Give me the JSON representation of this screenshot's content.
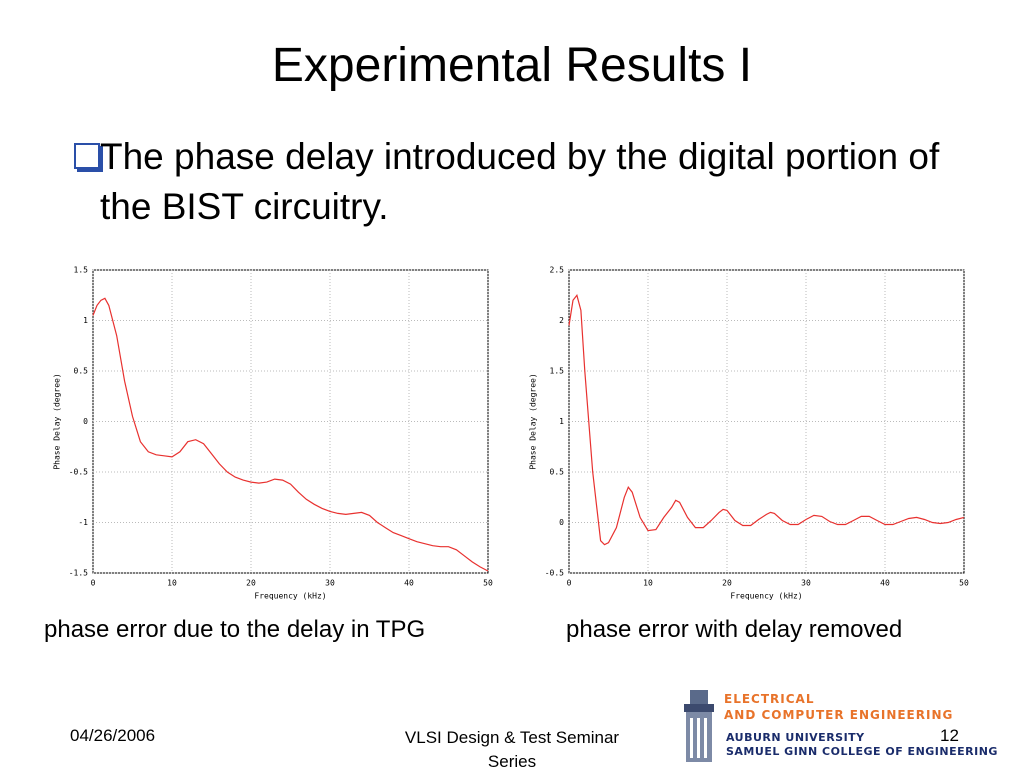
{
  "slide": {
    "title": "Experimental Results I",
    "bullet": "The phase delay introduced by the digital portion of the BIST circuitry.",
    "captions": [
      "phase error due to the delay in TPG",
      "phase error with delay removed"
    ],
    "footer": {
      "date": "04/26/2006",
      "center": "VLSI Design & Test Seminar Series",
      "page": "12"
    },
    "logo": [
      "ELECTRICAL",
      "AND COMPUTER ENGINEERING",
      "AUBURN UNIVERSITY",
      "SAMUEL GINN COLLEGE OF ENGINEERING"
    ]
  },
  "chart_data": [
    {
      "type": "line",
      "xlabel": "Frequency (kHz)",
      "ylabel": "Phase Delay (degree)",
      "color": "#e8312f",
      "grid": true,
      "xlim": [
        0,
        50
      ],
      "xticks": [
        0,
        10,
        20,
        30,
        40,
        50
      ],
      "ylim": [
        -1.5,
        1.5
      ],
      "yticks": [
        -1.5,
        -1,
        -0.5,
        0,
        0.5,
        1,
        1.5
      ],
      "x": [
        0,
        0.5,
        1,
        1.5,
        2,
        3,
        4,
        5,
        6,
        7,
        8,
        9,
        10,
        11,
        12,
        13,
        14,
        15,
        16,
        17,
        18,
        19,
        20,
        21,
        22,
        23,
        24,
        25,
        26,
        27,
        28,
        29,
        30,
        31,
        32,
        33,
        34,
        35,
        36,
        37,
        38,
        39,
        40,
        41,
        42,
        43,
        44,
        45,
        46,
        47,
        48,
        49,
        50
      ],
      "y": [
        1.05,
        1.15,
        1.2,
        1.22,
        1.15,
        0.85,
        0.4,
        0.05,
        -0.2,
        -0.3,
        -0.33,
        -0.34,
        -0.35,
        -0.3,
        -0.2,
        -0.18,
        -0.22,
        -0.32,
        -0.42,
        -0.5,
        -0.55,
        -0.58,
        -0.6,
        -0.61,
        -0.6,
        -0.57,
        -0.58,
        -0.62,
        -0.7,
        -0.77,
        -0.82,
        -0.86,
        -0.89,
        -0.91,
        -0.92,
        -0.91,
        -0.9,
        -0.93,
        -1.0,
        -1.05,
        -1.1,
        -1.13,
        -1.16,
        -1.19,
        -1.21,
        -1.23,
        -1.24,
        -1.24,
        -1.27,
        -1.33,
        -1.39,
        -1.44,
        -1.48
      ]
    },
    {
      "type": "line",
      "xlabel": "Frequency (kHz)",
      "ylabel": "Phase Delay (degree)",
      "color": "#e8312f",
      "grid": true,
      "xlim": [
        0,
        50
      ],
      "xticks": [
        0,
        10,
        20,
        30,
        40,
        50
      ],
      "ylim": [
        -0.5,
        2.5
      ],
      "yticks": [
        -0.5,
        0,
        0.5,
        1,
        1.5,
        2,
        2.5
      ],
      "x": [
        0,
        0.5,
        1,
        1.5,
        2,
        3,
        4,
        4.5,
        5,
        6,
        7,
        7.5,
        8,
        9,
        10,
        11,
        12,
        13,
        13.5,
        14,
        15,
        16,
        17,
        18,
        19,
        19.5,
        20,
        21,
        22,
        23,
        24,
        25,
        25.5,
        26,
        27,
        28,
        29,
        30,
        31,
        32,
        33,
        34,
        35,
        36,
        37,
        38,
        39,
        40,
        41,
        42,
        43,
        44,
        45,
        46,
        47,
        48,
        49,
        50
      ],
      "y": [
        1.95,
        2.2,
        2.25,
        2.1,
        1.5,
        0.5,
        -0.18,
        -0.22,
        -0.2,
        -0.05,
        0.25,
        0.35,
        0.3,
        0.05,
        -0.08,
        -0.07,
        0.05,
        0.15,
        0.22,
        0.2,
        0.05,
        -0.05,
        -0.05,
        0.02,
        0.1,
        0.13,
        0.12,
        0.02,
        -0.03,
        -0.03,
        0.03,
        0.08,
        0.1,
        0.09,
        0.02,
        -0.02,
        -0.02,
        0.03,
        0.07,
        0.06,
        0.01,
        -0.02,
        -0.02,
        0.02,
        0.06,
        0.06,
        0.02,
        -0.02,
        -0.02,
        0.01,
        0.04,
        0.05,
        0.03,
        0,
        -0.01,
        0,
        0.03,
        0.05
      ]
    }
  ]
}
